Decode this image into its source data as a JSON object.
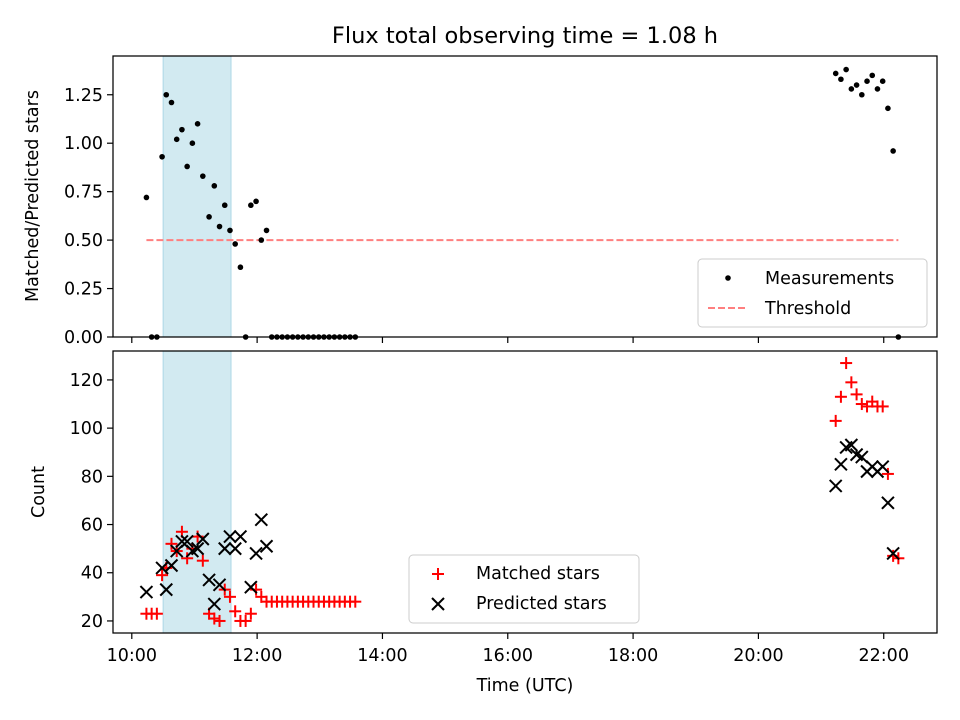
{
  "title": "Flux total observing time = 1.08 h",
  "colors": {
    "shade": "#add8e6",
    "threshold": "#ff7f7f",
    "matched": "#ff0000",
    "predicted": "#000000",
    "measurement": "#000000"
  },
  "chart_data": [
    {
      "type": "scatter",
      "panel": "top",
      "ylabel": "Matched/Predicted stars",
      "ylim": [
        0,
        1.45
      ],
      "xlim_hours": [
        9.7,
        22.85
      ],
      "y_ticks": [
        "0.00",
        "0.25",
        "0.50",
        "0.75",
        "1.00",
        "1.25"
      ],
      "x_ticks": [
        "10:00",
        "12:00",
        "14:00",
        "16:00",
        "18:00",
        "20:00",
        "22:00"
      ],
      "shaded_span": [
        "10:30",
        "11:35"
      ],
      "legend_position": "lower right",
      "series": [
        {
          "name": "Measurements",
          "points": [
            [
              "10:14",
              0.72
            ],
            [
              "10:19",
              0.0
            ],
            [
              "10:24",
              0.0
            ],
            [
              "10:29",
              0.93
            ],
            [
              "10:33",
              1.25
            ],
            [
              "10:38",
              1.21
            ],
            [
              "10:43",
              1.02
            ],
            [
              "10:48",
              1.07
            ],
            [
              "10:53",
              0.88
            ],
            [
              "10:58",
              1.0
            ],
            [
              "11:03",
              1.1
            ],
            [
              "11:08",
              0.83
            ],
            [
              "11:14",
              0.62
            ],
            [
              "11:19",
              0.78
            ],
            [
              "11:24",
              0.57
            ],
            [
              "11:29",
              0.68
            ],
            [
              "11:34",
              0.55
            ],
            [
              "11:39",
              0.48
            ],
            [
              "11:44",
              0.36
            ],
            [
              "11:49",
              0.0
            ],
            [
              "11:54",
              0.68
            ],
            [
              "11:59",
              0.7
            ],
            [
              "12:04",
              0.5
            ],
            [
              "12:09",
              0.55
            ],
            [
              "12:14",
              0.0
            ],
            [
              "12:19",
              0.0
            ],
            [
              "12:24",
              0.0
            ],
            [
              "12:29",
              0.0
            ],
            [
              "12:34",
              0.0
            ],
            [
              "12:39",
              0.0
            ],
            [
              "12:44",
              0.0
            ],
            [
              "12:49",
              0.0
            ],
            [
              "12:54",
              0.0
            ],
            [
              "12:59",
              0.0
            ],
            [
              "13:04",
              0.0
            ],
            [
              "13:09",
              0.0
            ],
            [
              "13:14",
              0.0
            ],
            [
              "13:19",
              0.0
            ],
            [
              "13:24",
              0.0
            ],
            [
              "13:29",
              0.0
            ],
            [
              "13:34",
              0.0
            ],
            [
              "21:14",
              1.36
            ],
            [
              "21:19",
              1.33
            ],
            [
              "21:24",
              1.38
            ],
            [
              "21:29",
              1.28
            ],
            [
              "21:34",
              1.3
            ],
            [
              "21:39",
              1.25
            ],
            [
              "21:44",
              1.32
            ],
            [
              "21:49",
              1.35
            ],
            [
              "21:54",
              1.28
            ],
            [
              "21:59",
              1.32
            ],
            [
              "22:04",
              1.18
            ],
            [
              "22:09",
              0.96
            ],
            [
              "22:14",
              0.0
            ]
          ]
        },
        {
          "name": "Threshold",
          "style": "dashed",
          "x": [
            "10:14",
            "22:14"
          ],
          "values": [
            0.5,
            0.5
          ]
        }
      ]
    },
    {
      "type": "scatter",
      "panel": "bottom",
      "xlabel": "Time (UTC)",
      "ylabel": "Count",
      "ylim": [
        15,
        132
      ],
      "xlim_hours": [
        9.7,
        22.85
      ],
      "y_ticks": [
        "20",
        "40",
        "60",
        "80",
        "100",
        "120"
      ],
      "x_ticks": [
        "10:00",
        "12:00",
        "14:00",
        "16:00",
        "18:00",
        "20:00",
        "22:00"
      ],
      "shaded_span": [
        "10:30",
        "11:35"
      ],
      "legend_position": "lower center",
      "series": [
        {
          "name": "Matched stars",
          "marker": "+",
          "points": [
            [
              "10:14",
              23
            ],
            [
              "10:19",
              23
            ],
            [
              "10:24",
              23
            ],
            [
              "10:29",
              39
            ],
            [
              "10:33",
              42
            ],
            [
              "10:38",
              52
            ],
            [
              "10:43",
              49
            ],
            [
              "10:48",
              57
            ],
            [
              "10:53",
              46
            ],
            [
              "10:58",
              50
            ],
            [
              "11:03",
              55
            ],
            [
              "11:08",
              45
            ],
            [
              "11:14",
              23
            ],
            [
              "11:19",
              21
            ],
            [
              "11:24",
              20
            ],
            [
              "11:29",
              33
            ],
            [
              "11:34",
              30
            ],
            [
              "11:39",
              24
            ],
            [
              "11:44",
              20
            ],
            [
              "11:49",
              20
            ],
            [
              "11:54",
              23
            ],
            [
              "11:59",
              33
            ],
            [
              "12:04",
              30
            ],
            [
              "12:09",
              28
            ],
            [
              "12:14",
              28
            ],
            [
              "12:19",
              28
            ],
            [
              "12:24",
              28
            ],
            [
              "12:29",
              28
            ],
            [
              "12:34",
              28
            ],
            [
              "12:39",
              28
            ],
            [
              "12:44",
              28
            ],
            [
              "12:49",
              28
            ],
            [
              "12:54",
              28
            ],
            [
              "12:59",
              28
            ],
            [
              "13:04",
              28
            ],
            [
              "13:09",
              28
            ],
            [
              "13:14",
              28
            ],
            [
              "13:19",
              28
            ],
            [
              "13:24",
              28
            ],
            [
              "13:29",
              28
            ],
            [
              "13:34",
              28
            ],
            [
              "21:14",
              103
            ],
            [
              "21:19",
              113
            ],
            [
              "21:24",
              127
            ],
            [
              "21:29",
              119
            ],
            [
              "21:34",
              114
            ],
            [
              "21:39",
              110
            ],
            [
              "21:44",
              109
            ],
            [
              "21:49",
              111
            ],
            [
              "21:54",
              109
            ],
            [
              "21:59",
              109
            ],
            [
              "22:04",
              81
            ],
            [
              "22:09",
              47
            ],
            [
              "22:14",
              46
            ]
          ]
        },
        {
          "name": "Predicted stars",
          "marker": "x",
          "points": [
            [
              "10:14",
              32
            ],
            [
              "10:29",
              42
            ],
            [
              "10:33",
              33
            ],
            [
              "10:38",
              43
            ],
            [
              "10:43",
              49
            ],
            [
              "10:48",
              53
            ],
            [
              "10:53",
              53
            ],
            [
              "10:58",
              49
            ],
            [
              "11:03",
              50
            ],
            [
              "11:08",
              54
            ],
            [
              "11:14",
              37
            ],
            [
              "11:19",
              27
            ],
            [
              "11:24",
              35
            ],
            [
              "11:29",
              50
            ],
            [
              "11:34",
              55
            ],
            [
              "11:39",
              50
            ],
            [
              "11:44",
              55
            ],
            [
              "11:54",
              34
            ],
            [
              "11:59",
              48
            ],
            [
              "12:04",
              62
            ],
            [
              "12:09",
              51
            ],
            [
              "21:14",
              76
            ],
            [
              "21:19",
              85
            ],
            [
              "21:24",
              92
            ],
            [
              "21:29",
              93
            ],
            [
              "21:34",
              89
            ],
            [
              "21:39",
              88
            ],
            [
              "21:44",
              82
            ],
            [
              "21:49",
              84
            ],
            [
              "21:54",
              82
            ],
            [
              "21:59",
              84
            ],
            [
              "22:04",
              69
            ],
            [
              "22:09",
              48
            ]
          ]
        }
      ]
    }
  ]
}
